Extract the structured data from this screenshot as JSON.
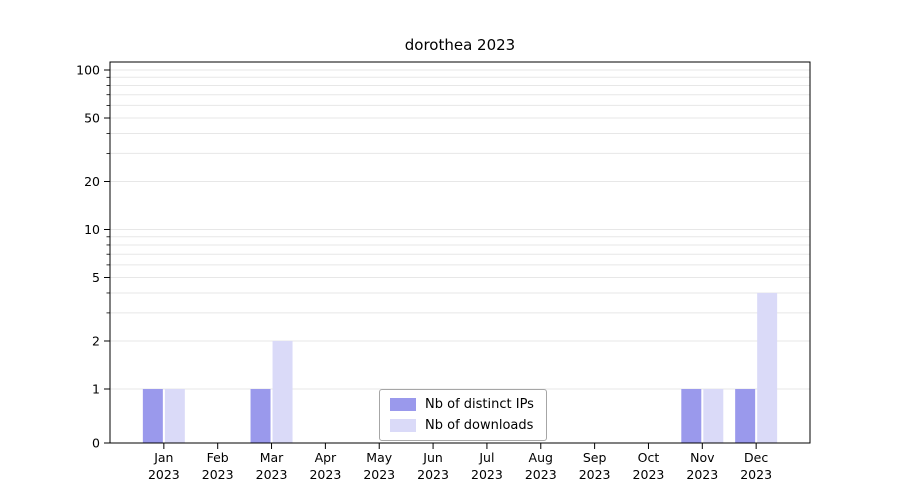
{
  "chart_data": {
    "type": "bar",
    "title": "dorothea 2023",
    "categories": [
      "Jan",
      "Feb",
      "Mar",
      "Apr",
      "May",
      "Jun",
      "Jul",
      "Aug",
      "Sep",
      "Oct",
      "Nov",
      "Dec"
    ],
    "year": "2023",
    "series": [
      {
        "name": "Nb of distinct IPs",
        "color": "#9a99ec",
        "values": [
          1,
          0,
          1,
          0,
          0,
          0,
          0,
          0,
          0,
          0,
          1,
          1
        ]
      },
      {
        "name": "Nb of downloads",
        "color": "#dadaf8",
        "values": [
          1,
          0,
          2,
          0,
          0,
          0,
          0,
          0,
          0,
          0,
          1,
          4
        ]
      }
    ],
    "yticks": [
      0,
      1,
      2,
      5,
      10,
      20,
      50,
      100
    ],
    "minor_gridlines": [
      1,
      2,
      3,
      4,
      5,
      6,
      7,
      8,
      9,
      10,
      20,
      30,
      40,
      50,
      60,
      70,
      80,
      90,
      100
    ],
    "ylim": [
      0,
      110
    ],
    "xlabel": "",
    "ylabel": "",
    "scale": "symlog",
    "grid": "horizontal",
    "legend_position": "lower center"
  }
}
